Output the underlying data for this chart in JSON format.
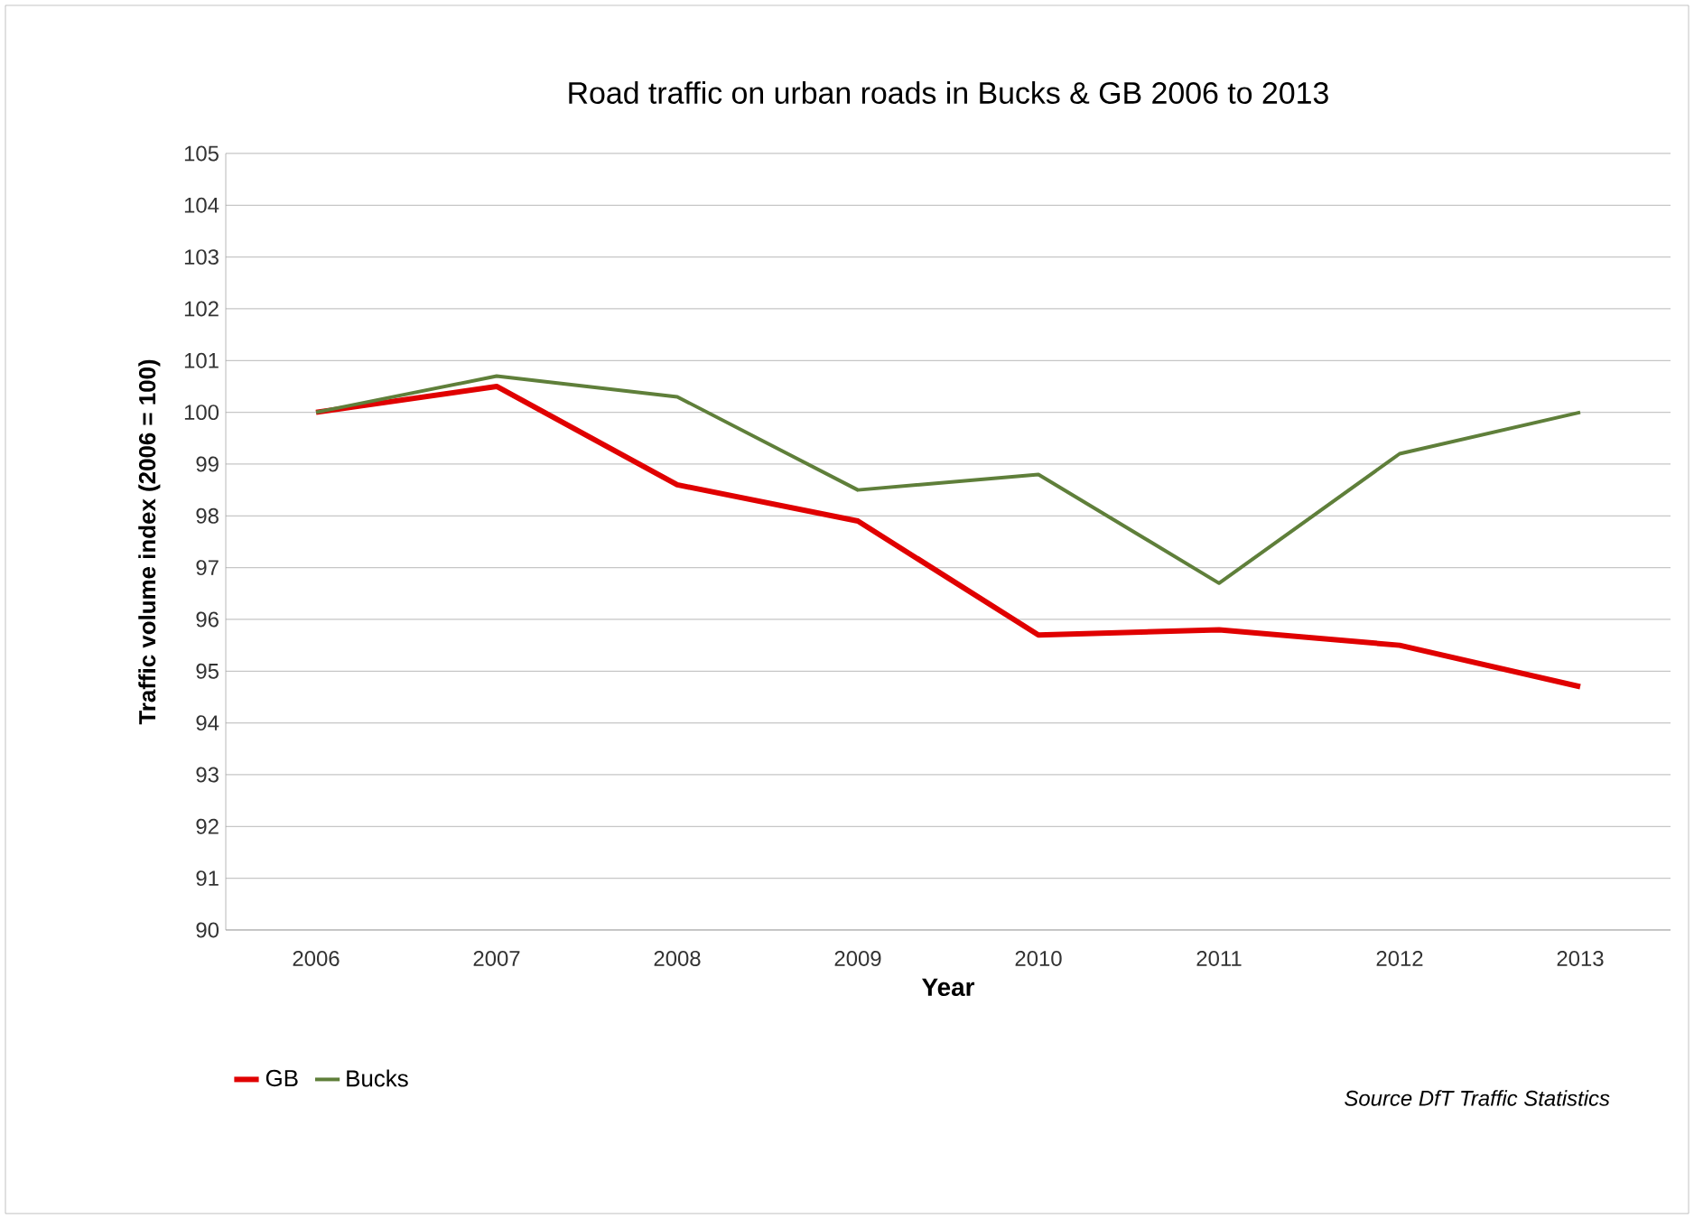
{
  "chart_data": {
    "type": "line",
    "title": "Road traffic on urban roads in Bucks & GB 2006 to 2013",
    "xlabel": "Year",
    "ylabel": "Traffic volume index (2006 = 100)",
    "categories": [
      "2006",
      "2007",
      "2008",
      "2009",
      "2010",
      "2011",
      "2012",
      "2013"
    ],
    "series": [
      {
        "name": "GB",
        "color": "#e00000",
        "values": [
          100,
          100.5,
          98.6,
          97.9,
          95.7,
          95.8,
          95.5,
          94.7
        ]
      },
      {
        "name": "Bucks",
        "color": "#5f7f3a",
        "values": [
          100,
          100.7,
          100.3,
          98.5,
          98.8,
          96.7,
          99.2,
          100
        ]
      }
    ],
    "ylim": [
      90,
      105
    ],
    "yticks": [
      90,
      91,
      92,
      93,
      94,
      95,
      96,
      97,
      98,
      99,
      100,
      101,
      102,
      103,
      104,
      105
    ],
    "grid": "y",
    "legend": "bottom left",
    "marker": "none",
    "line_style": "solid",
    "annotations": [
      "Source DfT Traffic Statistics"
    ]
  }
}
